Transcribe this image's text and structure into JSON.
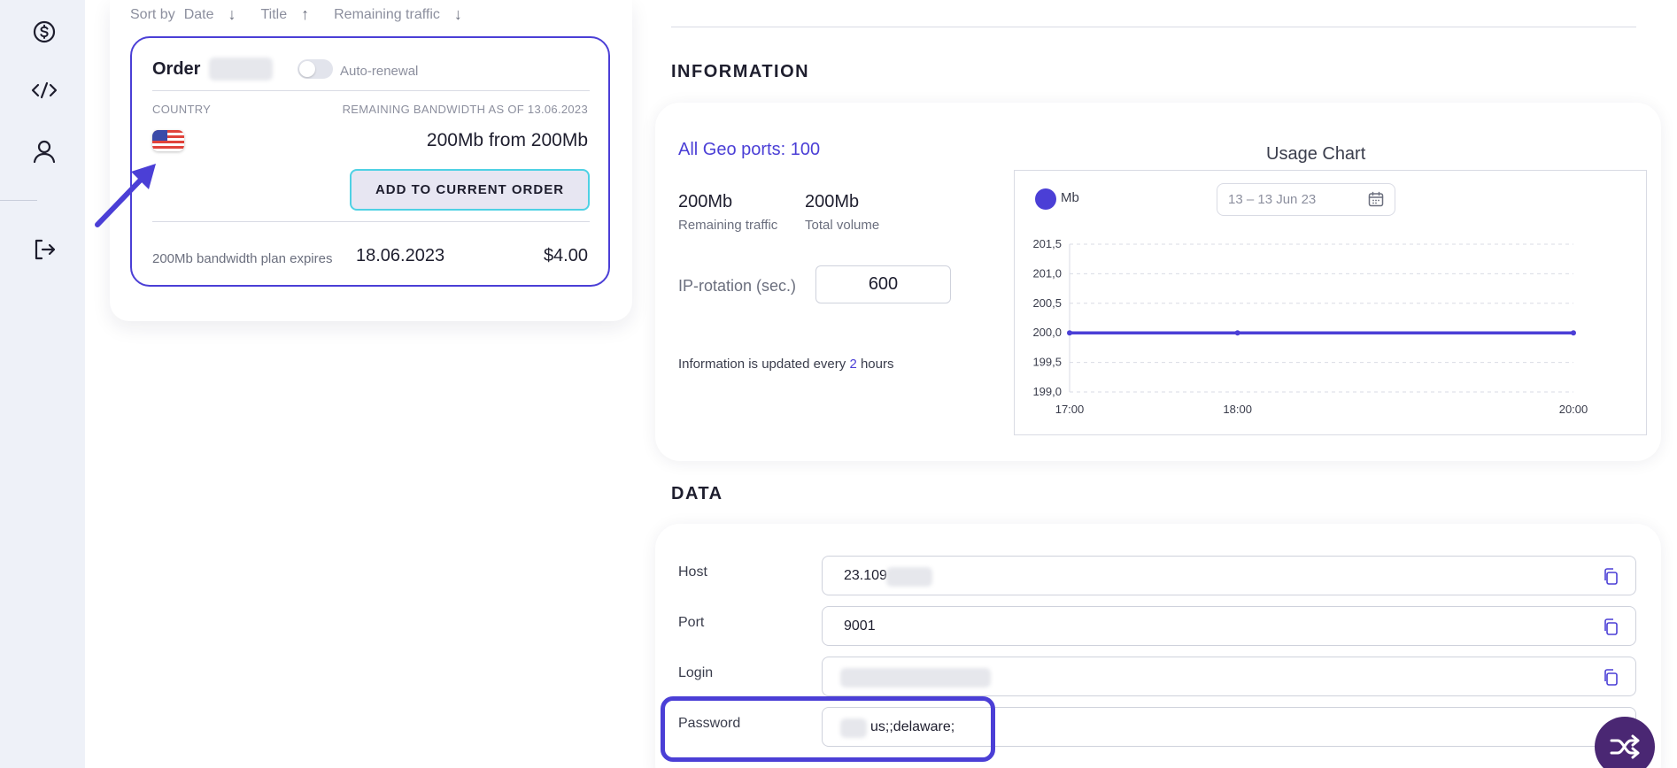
{
  "sidebar": {
    "items": [
      {
        "icon": "dollar-icon"
      },
      {
        "icon": "code-icon"
      },
      {
        "icon": "user-icon"
      },
      {
        "icon": "logout-icon"
      }
    ]
  },
  "sort": {
    "label": "Sort by",
    "options": [
      {
        "label": "Date",
        "direction": "↓"
      },
      {
        "label": "Title",
        "direction": "↑"
      },
      {
        "label": "Remaining traffic",
        "direction": "↓"
      }
    ]
  },
  "order": {
    "title": "Order",
    "auto_renewal_label": "Auto-renewal",
    "auto_renewal_on": false,
    "country_label": "COUNTRY",
    "bandwidth_label": "REMAINING BANDWIDTH AS OF 13.06.2023",
    "country_flag": "us-flag",
    "bandwidth_value": "200Mb from 200Mb",
    "add_button": "ADD TO CURRENT ORDER",
    "expire_label": "200Mb bandwidth plan expires",
    "expire_date": "18.06.2023",
    "price": "$4.00"
  },
  "information": {
    "section_title": "INFORMATION",
    "geo_label": "All Geo ports:",
    "geo_value": "100",
    "remaining_value": "200Mb",
    "remaining_label": "Remaining traffic",
    "total_value": "200Mb",
    "total_label": "Total volume",
    "ip_rotation_label": "IP-rotation (sec.)",
    "ip_rotation_value": "600",
    "update_note_prefix": "Information is updated every ",
    "update_note_value": "2",
    "update_note_suffix": " hours"
  },
  "chart": {
    "title": "Usage Chart",
    "legend": "Mb",
    "date_range": "13 – 13 Jun 23"
  },
  "chart_data": {
    "type": "line",
    "title": "Usage Chart",
    "x": [
      "17:00",
      "18:00",
      "20:00"
    ],
    "series": [
      {
        "name": "Mb",
        "values": [
          200,
          200,
          200
        ]
      }
    ],
    "yticks": [
      "201,5",
      "201,0",
      "200,5",
      "200,0",
      "199,5",
      "199,0"
    ],
    "ylim": [
      199.0,
      201.5
    ],
    "grid": true,
    "legend": "top-left",
    "color": "#4b3fd6"
  },
  "data": {
    "section_title": "DATA",
    "fields": [
      {
        "label": "Host",
        "value": "23.109"
      },
      {
        "label": "Port",
        "value": "9001"
      },
      {
        "label": "Login",
        "value": ""
      },
      {
        "label": "Password",
        "value": "us;;delaware;"
      }
    ]
  },
  "colors": {
    "accent": "#4b3fd6",
    "button_border": "#4fd1e4",
    "fab": "#4a2773"
  }
}
